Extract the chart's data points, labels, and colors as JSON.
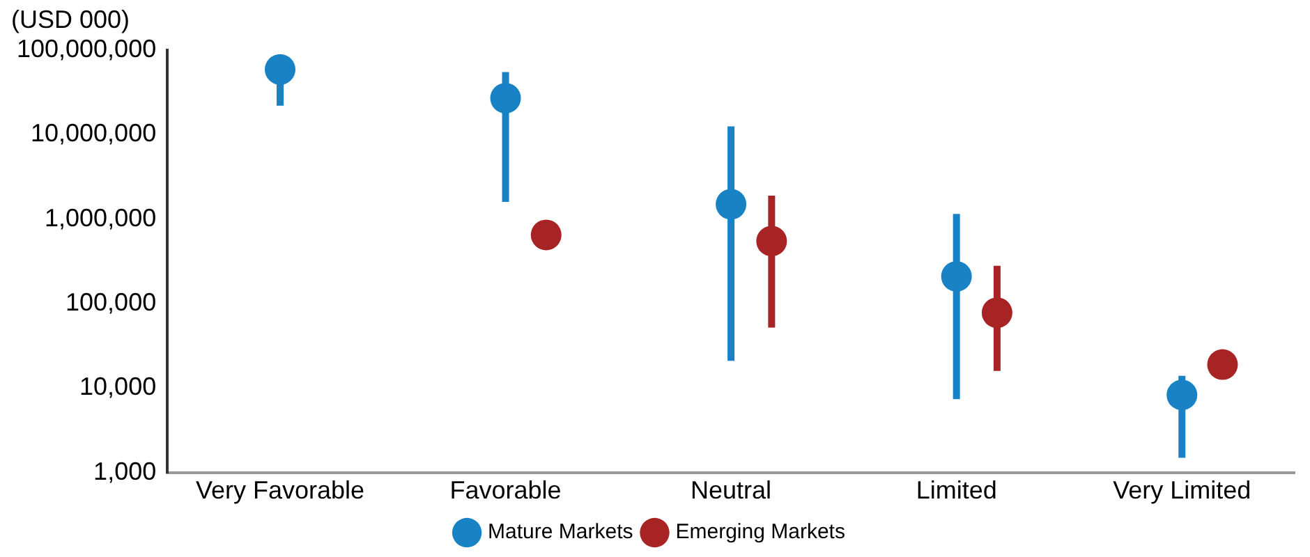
{
  "chart_data": {
    "type": "scatter",
    "ylabel": "(USD 000)",
    "categories": [
      "Very Favorable",
      "Favorable",
      "Neutral",
      "Limited",
      "Very Limited"
    ],
    "log": "y",
    "ylim": [
      1000,
      100000000
    ],
    "yticks": [
      {
        "value": 1000,
        "label": "1,000"
      },
      {
        "value": 10000,
        "label": "10,000"
      },
      {
        "value": 100000,
        "label": "100,000"
      },
      {
        "value": 1000000,
        "label": "1,000,000"
      },
      {
        "value": 10000000,
        "label": "10,000,000"
      },
      {
        "value": 100000000,
        "label": "100,000,000"
      }
    ],
    "grid": false,
    "legend": "bottom",
    "marker": "circle",
    "series": [
      {
        "name": "Mature Markets",
        "color": "#1982c4",
        "values": [
          59000000,
          27000000,
          1500000,
          210000,
          8300
        ],
        "errors": [
          [
            22000000,
            59000000
          ],
          [
            1600000,
            55000000
          ],
          [
            21000,
            12500000
          ],
          [
            7400,
            1150000
          ],
          [
            1500,
            14000
          ]
        ]
      },
      {
        "name": "Emerging Markets",
        "color": "#a82323",
        "values": [
          null,
          650000,
          550000,
          78000,
          19000
        ],
        "errors": [
          null,
          null,
          [
            52000,
            1900000
          ],
          [
            16000,
            280000
          ],
          null
        ]
      }
    ]
  }
}
